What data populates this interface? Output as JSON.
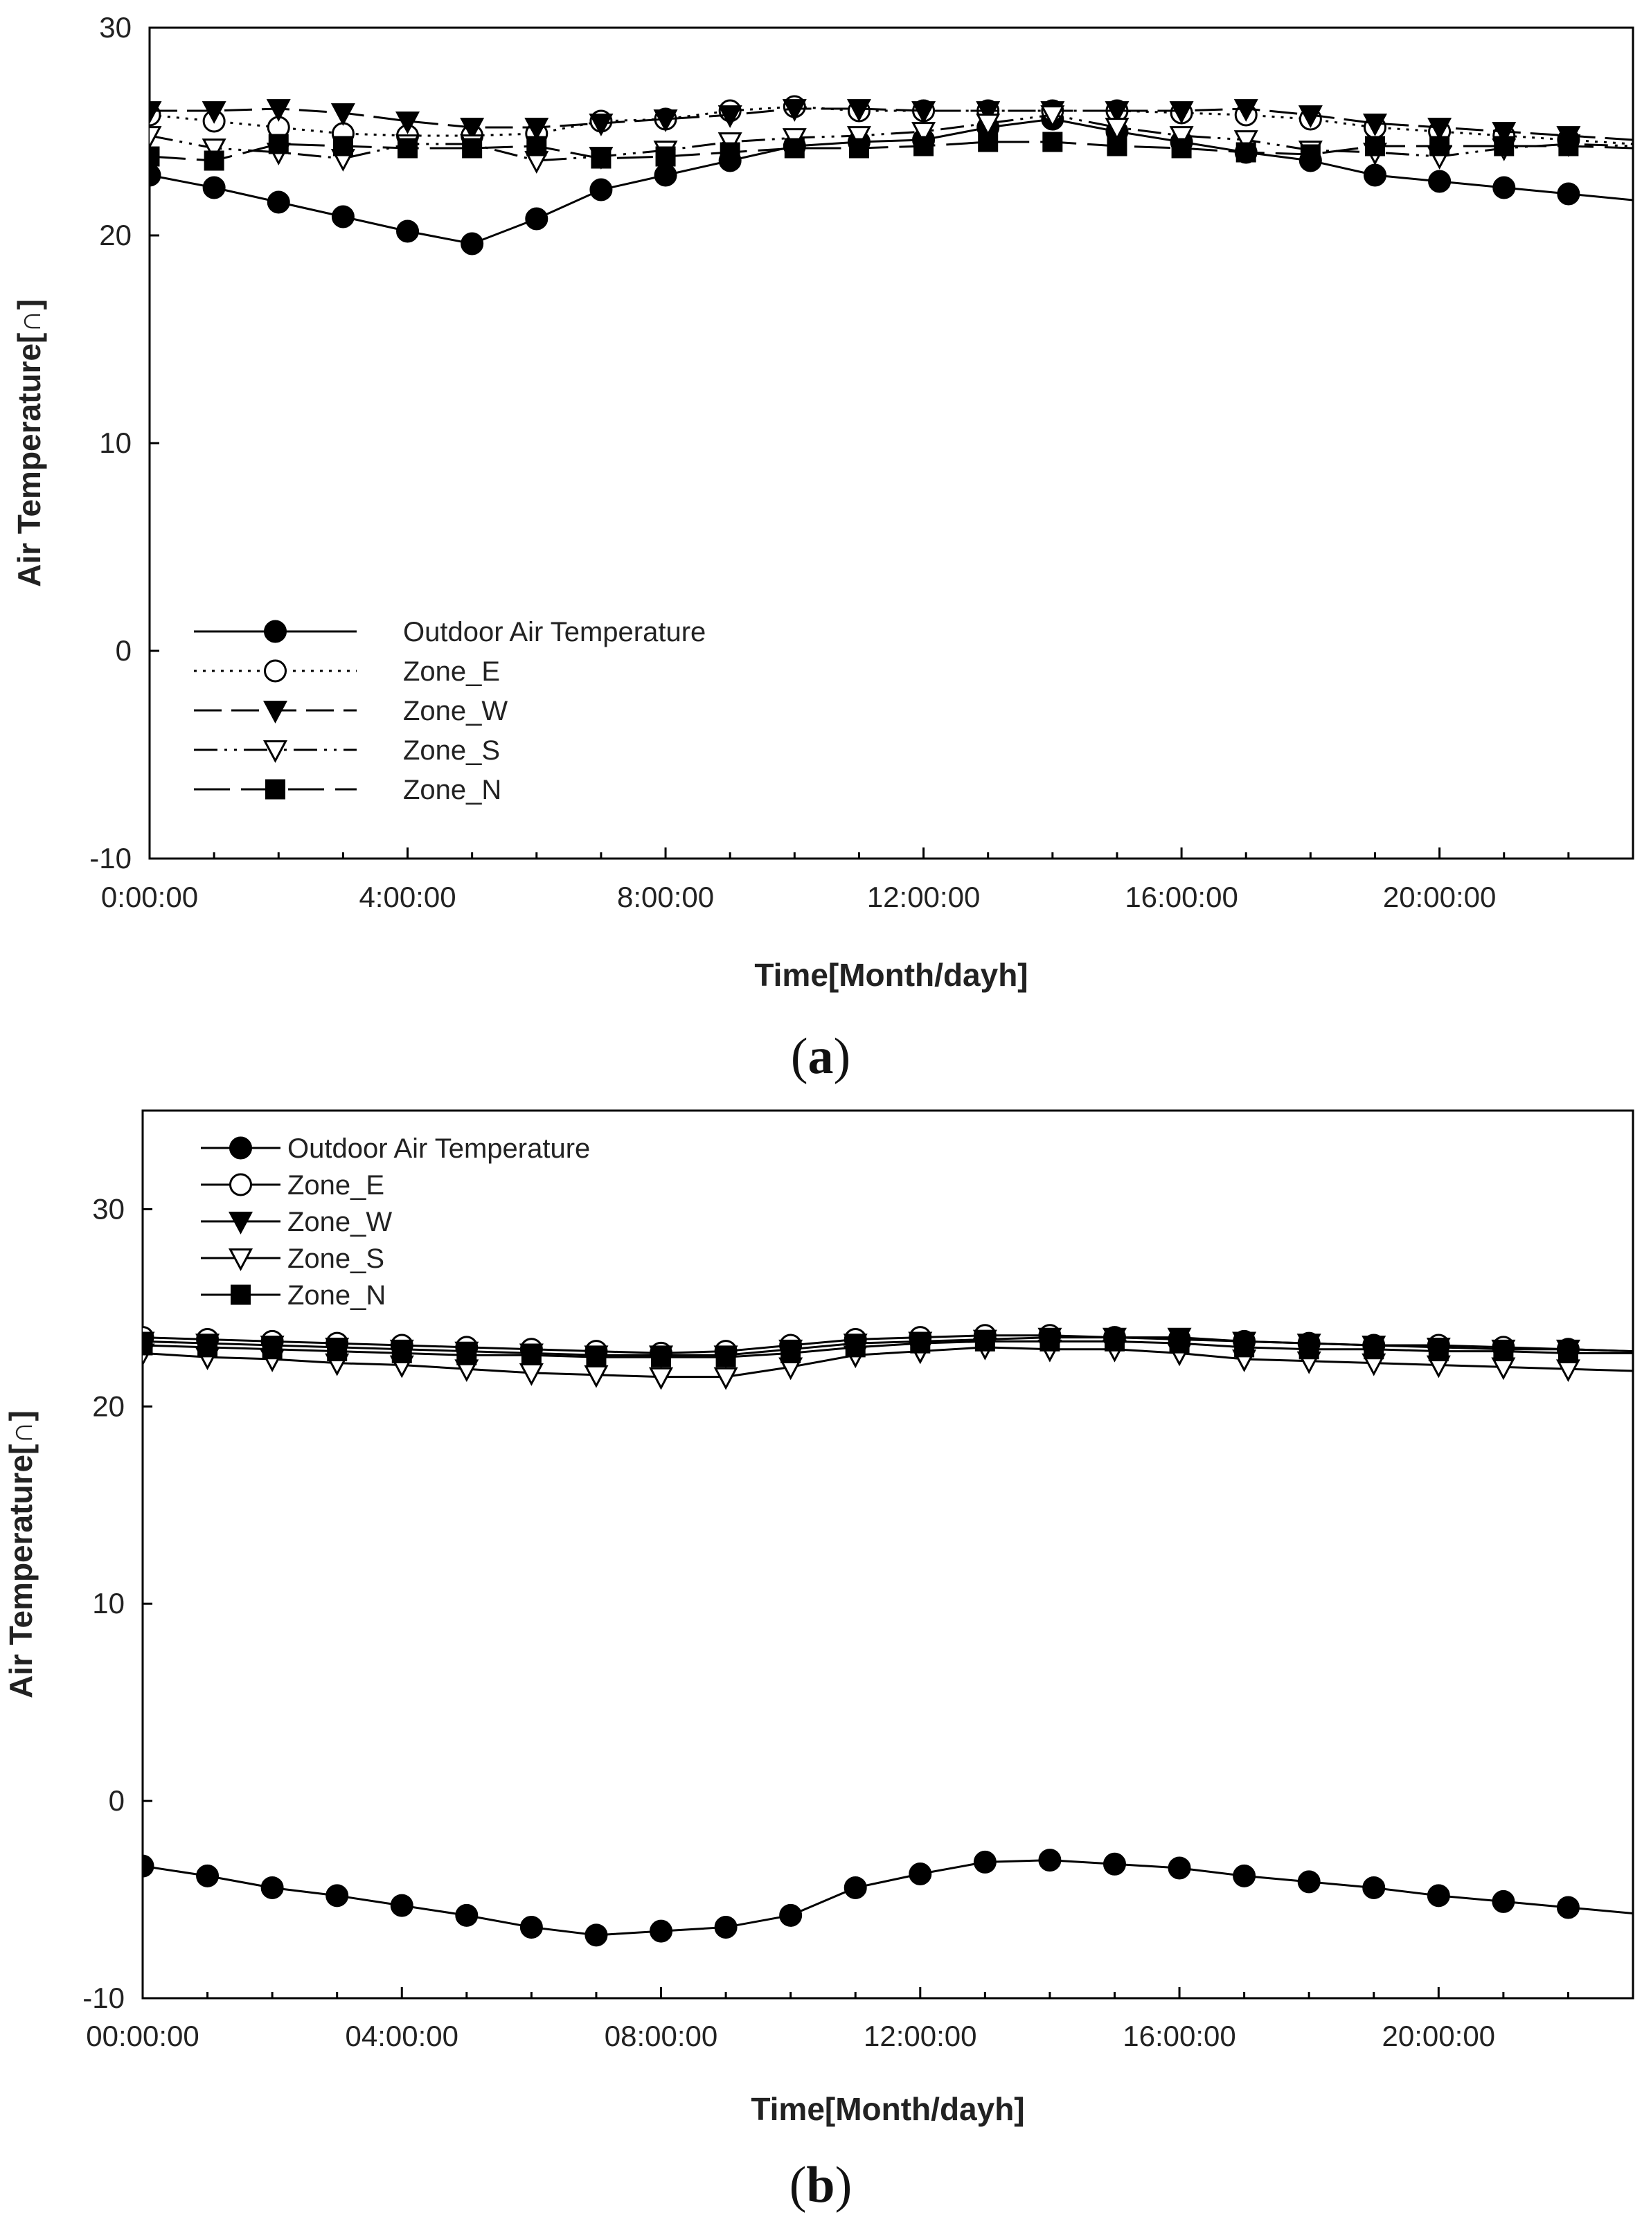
{
  "chart_data": [
    {
      "type": "line",
      "panel": "a",
      "caption_letter": "a",
      "xlabel": "Time[Month/dayh]",
      "ylabel": "Air Temperature[∩]",
      "ylim": [
        -10,
        30
      ],
      "xlim": [
        0,
        23
      ],
      "yticks": [
        -10,
        0,
        10,
        20,
        30
      ],
      "xticks": [
        0,
        4,
        8,
        12,
        16,
        20
      ],
      "xtick_labels": [
        "0:00:00",
        "4:00:00",
        "8:00:00",
        "12:00:00",
        "16:00:00",
        "20:00:00"
      ],
      "legend_position": "bottom-left",
      "x": [
        0,
        1,
        2,
        3,
        4,
        5,
        6,
        7,
        8,
        9,
        10,
        11,
        12,
        13,
        14,
        15,
        16,
        17,
        18,
        19,
        20,
        21,
        22,
        23
      ],
      "series": [
        {
          "name": "Outdoor Air Temperature",
          "marker": "circle-filled",
          "dash": "solid",
          "values": [
            22.9,
            22.3,
            21.6,
            20.9,
            20.2,
            19.6,
            20.8,
            22.2,
            22.9,
            23.6,
            24.3,
            24.5,
            24.6,
            25.2,
            25.6,
            25.0,
            24.5,
            24.0,
            23.6,
            22.9,
            22.6,
            22.3,
            22.0,
            21.7
          ]
        },
        {
          "name": "Zone_E",
          "marker": "circle-open",
          "dash": "dotted",
          "values": [
            25.8,
            25.5,
            25.2,
            24.9,
            24.8,
            24.8,
            24.9,
            25.5,
            25.6,
            26.0,
            26.2,
            26.0,
            26.0,
            26.0,
            26.0,
            26.0,
            25.9,
            25.8,
            25.6,
            25.2,
            25.0,
            24.8,
            24.6,
            24.4
          ]
        },
        {
          "name": "Zone_W",
          "marker": "triangle-down-filled",
          "dash": "dashed",
          "values": [
            26.0,
            26.0,
            26.1,
            25.9,
            25.5,
            25.2,
            25.2,
            25.4,
            25.6,
            25.8,
            26.1,
            26.1,
            26.0,
            26.0,
            26.0,
            26.0,
            26.0,
            26.1,
            25.8,
            25.4,
            25.2,
            25.0,
            24.8,
            24.6
          ]
        },
        {
          "name": "Zone_S",
          "marker": "triangle-down-open",
          "dash": "dashdotdot",
          "values": [
            24.8,
            24.2,
            24.0,
            23.7,
            24.4,
            24.4,
            23.6,
            23.8,
            24.1,
            24.5,
            24.7,
            24.8,
            25.0,
            25.4,
            25.8,
            25.2,
            24.8,
            24.6,
            24.1,
            24.0,
            23.8,
            24.2,
            24.4,
            24.3
          ]
        },
        {
          "name": "Zone_N",
          "marker": "square-filled",
          "dash": "longdash",
          "values": [
            23.8,
            23.6,
            24.4,
            24.3,
            24.2,
            24.2,
            24.3,
            23.7,
            23.8,
            24.0,
            24.2,
            24.2,
            24.3,
            24.5,
            24.5,
            24.3,
            24.2,
            24.0,
            23.9,
            24.3,
            24.3,
            24.3,
            24.3,
            24.2
          ]
        }
      ]
    },
    {
      "type": "line",
      "panel": "b",
      "caption_letter": "b",
      "xlabel": "Time[Month/dayh]",
      "ylabel": "Air Temperature[∩]",
      "ylim": [
        -10,
        35
      ],
      "xlim": [
        0,
        23
      ],
      "yticks": [
        -10,
        0,
        10,
        20,
        30
      ],
      "xticks": [
        0,
        4,
        8,
        12,
        16,
        20
      ],
      "xtick_labels": [
        "00:00:00",
        "04:00:00",
        "08:00:00",
        "12:00:00",
        "16:00:00",
        "20:00:00"
      ],
      "legend_position": "top-left",
      "x": [
        0,
        1,
        2,
        3,
        4,
        5,
        6,
        7,
        8,
        9,
        10,
        11,
        12,
        13,
        14,
        15,
        16,
        17,
        18,
        19,
        20,
        21,
        22,
        23
      ],
      "series": [
        {
          "name": "Outdoor Air Temperature",
          "marker": "circle-filled",
          "dash": "solid",
          "values": [
            -3.3,
            -3.8,
            -4.4,
            -4.8,
            -5.3,
            -5.8,
            -6.4,
            -6.8,
            -6.6,
            -6.4,
            -5.8,
            -4.4,
            -3.7,
            -3.1,
            -3.0,
            -3.2,
            -3.4,
            -3.8,
            -4.1,
            -4.4,
            -4.8,
            -5.1,
            -5.4,
            -5.7
          ]
        },
        {
          "name": "Zone_E",
          "marker": "circle-open",
          "dash": "solid",
          "values": [
            23.5,
            23.4,
            23.3,
            23.2,
            23.1,
            23.0,
            22.9,
            22.8,
            22.7,
            22.8,
            23.1,
            23.4,
            23.5,
            23.6,
            23.6,
            23.5,
            23.4,
            23.3,
            23.2,
            23.1,
            23.1,
            23.0,
            22.9,
            22.8
          ]
        },
        {
          "name": "Zone_W",
          "marker": "triangle-down-filled",
          "dash": "solid",
          "values": [
            23.3,
            23.2,
            23.1,
            23.0,
            22.9,
            22.8,
            22.7,
            22.6,
            22.6,
            22.6,
            22.9,
            23.2,
            23.3,
            23.4,
            23.5,
            23.5,
            23.5,
            23.3,
            23.2,
            23.1,
            23.0,
            22.9,
            22.9,
            22.8
          ]
        },
        {
          "name": "Zone_S",
          "marker": "triangle-down-open",
          "dash": "solid",
          "values": [
            22.7,
            22.5,
            22.4,
            22.2,
            22.1,
            21.9,
            21.7,
            21.6,
            21.5,
            21.5,
            22.0,
            22.6,
            22.8,
            23.0,
            22.9,
            22.9,
            22.7,
            22.4,
            22.3,
            22.2,
            22.1,
            22.0,
            21.9,
            21.8
          ]
        },
        {
          "name": "Zone_N",
          "marker": "square-filled",
          "dash": "solid",
          "values": [
            23.1,
            23.0,
            22.9,
            22.8,
            22.7,
            22.6,
            22.6,
            22.5,
            22.5,
            22.5,
            22.7,
            23.0,
            23.2,
            23.3,
            23.3,
            23.3,
            23.2,
            23.0,
            22.9,
            22.9,
            22.8,
            22.8,
            22.7,
            22.7
          ]
        }
      ]
    }
  ]
}
